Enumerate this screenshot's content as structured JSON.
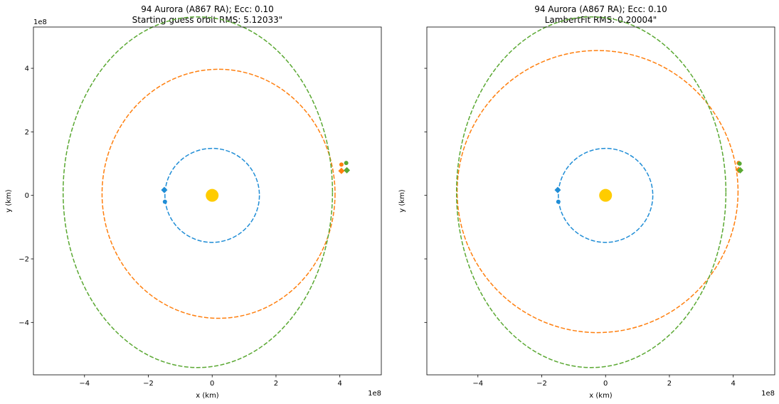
{
  "chart_data": [
    {
      "type": "scatter",
      "title": "94 Aurora (A867 RA); Ecc: 0.10",
      "subtitle": "Starting guess orbit RMS: 5.12033\"",
      "xlabel": "x (km)",
      "ylabel": "y (km)",
      "xlim": [
        -5.6,
        5.3
      ],
      "ylim": [
        -5.65,
        5.3
      ],
      "x_ticks": [
        -4,
        -2,
        0,
        2,
        4
      ],
      "x_tick_labels": [
        "−4",
        "−2",
        "0",
        "2",
        "4"
      ],
      "y_ticks": [
        -4,
        -2,
        0,
        2,
        4
      ],
      "y_tick_labels": [
        "−4",
        "−2",
        "0",
        "2",
        "4"
      ],
      "x_offset_label": "1e8",
      "y_offset_label": "1e8",
      "grid": false,
      "colors": {
        "sun": "#ffcc00",
        "earth": "#1f8dd6",
        "fit": "#ff7f0e",
        "true": "#5aa832"
      },
      "sun": {
        "x": 0.0,
        "y": 0.0
      },
      "orbits": [
        {
          "role": "earth",
          "cx": 0.0,
          "cy": 0.0,
          "rx": 1.48,
          "ry": 1.48
        },
        {
          "role": "fit",
          "cx": 0.2,
          "cy": 0.05,
          "rx": 3.65,
          "ry": 3.92
        },
        {
          "role": "true",
          "cx": -0.45,
          "cy": 0.1,
          "rx": 4.22,
          "ry": 5.52
        }
      ],
      "markers": [
        {
          "role": "earth",
          "shape": "diamond",
          "x": -1.5,
          "y": 0.17
        },
        {
          "role": "earth",
          "shape": "circle",
          "x": -1.48,
          "y": -0.2
        },
        {
          "role": "fit",
          "shape": "circle",
          "x": 4.05,
          "y": 0.97
        },
        {
          "role": "fit",
          "shape": "diamond",
          "x": 4.05,
          "y": 0.77
        },
        {
          "role": "true",
          "shape": "circle",
          "x": 4.2,
          "y": 1.02
        },
        {
          "role": "true",
          "shape": "diamond",
          "x": 4.22,
          "y": 0.79
        }
      ]
    },
    {
      "type": "scatter",
      "title": "94 Aurora (A867 RA); Ecc: 0.10",
      "subtitle": "LambertFit RMS: 0.20004\"",
      "xlabel": "x (km)",
      "ylabel": "y (km)",
      "xlim": [
        -5.6,
        5.3
      ],
      "ylim": [
        -5.65,
        5.3
      ],
      "x_ticks": [
        -4,
        -2,
        0,
        2,
        4
      ],
      "x_tick_labels": [
        "−4",
        "−2",
        "0",
        "2",
        "4"
      ],
      "y_ticks": [
        -4,
        -2,
        0,
        2,
        4
      ],
      "y_tick_labels": [
        "",
        "",
        "",
        "",
        ""
      ],
      "x_offset_label": "1e8",
      "y_offset_label": "",
      "grid": false,
      "colors": {
        "sun": "#ffcc00",
        "earth": "#1f8dd6",
        "fit": "#ff7f0e",
        "true": "#5aa832"
      },
      "sun": {
        "x": 0.0,
        "y": 0.0
      },
      "orbits": [
        {
          "role": "earth",
          "cx": 0.0,
          "cy": 0.0,
          "rx": 1.48,
          "ry": 1.48
        },
        {
          "role": "fit",
          "cx": -0.25,
          "cy": 0.12,
          "rx": 4.4,
          "ry": 4.44
        },
        {
          "role": "true",
          "cx": -0.45,
          "cy": 0.1,
          "rx": 4.22,
          "ry": 5.52
        }
      ],
      "markers": [
        {
          "role": "earth",
          "shape": "diamond",
          "x": -1.5,
          "y": 0.17
        },
        {
          "role": "earth",
          "shape": "circle",
          "x": -1.48,
          "y": -0.2
        },
        {
          "role": "fit",
          "shape": "circle",
          "x": 4.17,
          "y": 1.02
        },
        {
          "role": "fit",
          "shape": "diamond",
          "x": 4.17,
          "y": 0.8
        },
        {
          "role": "true",
          "shape": "circle",
          "x": 4.2,
          "y": 1.0
        },
        {
          "role": "true",
          "shape": "diamond",
          "x": 4.22,
          "y": 0.79
        }
      ]
    }
  ]
}
